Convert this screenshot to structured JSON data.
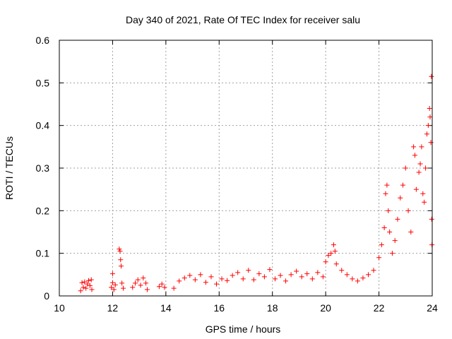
{
  "chart_data": {
    "type": "scatter",
    "title": "Day 340 of 2021, Rate Of TEC Index for receiver salu",
    "xlabel": "GPS time / hours",
    "ylabel": "ROTI / TECUs",
    "xlim": [
      10,
      24
    ],
    "ylim": [
      0,
      0.6
    ],
    "xticks": [
      "10",
      "12",
      "14",
      "16",
      "18",
      "20",
      "22",
      "24"
    ],
    "yticks": [
      "0",
      "0.1",
      "0.2",
      "0.3",
      "0.4",
      "0.5",
      "0.6"
    ],
    "grid": true,
    "legend": "none",
    "marker": "+",
    "color": "#ff0000",
    "series": [
      {
        "points": [
          [
            10.8,
            0.012
          ],
          [
            10.85,
            0.031
          ],
          [
            10.9,
            0.02
          ],
          [
            10.95,
            0.033
          ],
          [
            11.0,
            0.018
          ],
          [
            11.05,
            0.028
          ],
          [
            11.1,
            0.036
          ],
          [
            11.15,
            0.024
          ],
          [
            11.2,
            0.038
          ],
          [
            11.22,
            0.015
          ],
          [
            11.95,
            0.02
          ],
          [
            12.0,
            0.052
          ],
          [
            12.0,
            0.031
          ],
          [
            12.05,
            0.015
          ],
          [
            12.1,
            0.026
          ],
          [
            12.25,
            0.11
          ],
          [
            12.28,
            0.105
          ],
          [
            12.3,
            0.085
          ],
          [
            12.32,
            0.07
          ],
          [
            12.35,
            0.03
          ],
          [
            12.4,
            0.018
          ],
          [
            12.75,
            0.02
          ],
          [
            12.85,
            0.03
          ],
          [
            12.95,
            0.038
          ],
          [
            13.05,
            0.025
          ],
          [
            13.15,
            0.042
          ],
          [
            13.25,
            0.03
          ],
          [
            13.3,
            0.015
          ],
          [
            13.75,
            0.022
          ],
          [
            13.85,
            0.028
          ],
          [
            13.95,
            0.02
          ],
          [
            14.3,
            0.018
          ],
          [
            14.5,
            0.035
          ],
          [
            14.7,
            0.042
          ],
          [
            14.9,
            0.048
          ],
          [
            15.1,
            0.038
          ],
          [
            15.3,
            0.05
          ],
          [
            15.5,
            0.032
          ],
          [
            15.7,
            0.045
          ],
          [
            15.9,
            0.028
          ],
          [
            16.1,
            0.04
          ],
          [
            16.3,
            0.036
          ],
          [
            16.5,
            0.048
          ],
          [
            16.7,
            0.055
          ],
          [
            16.9,
            0.04
          ],
          [
            17.1,
            0.06
          ],
          [
            17.3,
            0.038
          ],
          [
            17.5,
            0.052
          ],
          [
            17.7,
            0.045
          ],
          [
            17.9,
            0.062
          ],
          [
            18.1,
            0.04
          ],
          [
            18.3,
            0.048
          ],
          [
            18.5,
            0.035
          ],
          [
            18.7,
            0.05
          ],
          [
            18.9,
            0.058
          ],
          [
            19.1,
            0.045
          ],
          [
            19.3,
            0.052
          ],
          [
            19.5,
            0.04
          ],
          [
            19.7,
            0.055
          ],
          [
            19.9,
            0.045
          ],
          [
            20.0,
            0.08
          ],
          [
            20.1,
            0.095
          ],
          [
            20.2,
            0.1
          ],
          [
            20.3,
            0.12
          ],
          [
            20.35,
            0.105
          ],
          [
            20.4,
            0.075
          ],
          [
            20.6,
            0.06
          ],
          [
            20.8,
            0.05
          ],
          [
            21.0,
            0.04
          ],
          [
            21.2,
            0.035
          ],
          [
            21.4,
            0.042
          ],
          [
            21.6,
            0.05
          ],
          [
            21.8,
            0.06
          ],
          [
            22.0,
            0.09
          ],
          [
            22.1,
            0.12
          ],
          [
            22.2,
            0.16
          ],
          [
            22.25,
            0.24
          ],
          [
            22.3,
            0.26
          ],
          [
            22.35,
            0.2
          ],
          [
            22.4,
            0.15
          ],
          [
            22.5,
            0.1
          ],
          [
            22.6,
            0.13
          ],
          [
            22.7,
            0.18
          ],
          [
            22.8,
            0.23
          ],
          [
            22.9,
            0.26
          ],
          [
            23.0,
            0.3
          ],
          [
            23.1,
            0.2
          ],
          [
            23.2,
            0.15
          ],
          [
            23.3,
            0.35
          ],
          [
            23.35,
            0.33
          ],
          [
            23.4,
            0.25
          ],
          [
            23.5,
            0.29
          ],
          [
            23.55,
            0.31
          ],
          [
            23.6,
            0.35
          ],
          [
            23.65,
            0.24
          ],
          [
            23.7,
            0.22
          ],
          [
            23.75,
            0.3
          ],
          [
            23.8,
            0.38
          ],
          [
            23.85,
            0.4
          ],
          [
            23.9,
            0.44
          ],
          [
            23.92,
            0.42
          ],
          [
            23.95,
            0.36
          ],
          [
            23.97,
            0.515
          ],
          [
            23.98,
            0.18
          ],
          [
            23.99,
            0.12
          ]
        ]
      }
    ]
  }
}
